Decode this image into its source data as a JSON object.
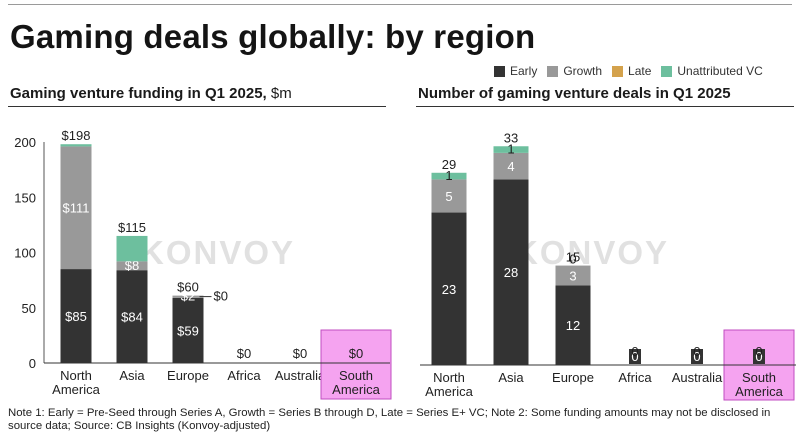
{
  "page": {
    "title": "Gaming deals globally: by region",
    "note": "Note 1: Early = Pre-Seed through Series A, Growth = Series B through D, Late = Series E+ VC; Note 2: Some funding amounts may not be disclosed in source data; Source: CB Insights (Konvoy-adjusted)",
    "watermark": "KONVOY"
  },
  "legend": [
    {
      "name": "Early",
      "color": "#333333"
    },
    {
      "name": "Growth",
      "color": "#999999"
    },
    {
      "name": "Late",
      "color": "#d4a24c"
    },
    {
      "name": "Unattributed VC",
      "color": "#6dbf9e"
    }
  ],
  "highlight_color": "#f5a3f0",
  "chart_data": [
    {
      "type": "bar",
      "stacked": true,
      "title": "Gaming venture funding in Q1 2025,",
      "unit": "$m",
      "categories": [
        "North America",
        "Asia",
        "Europe",
        "Africa",
        "Australia",
        "South America"
      ],
      "category_lines": [
        [
          "North",
          "America"
        ],
        [
          "Asia"
        ],
        [
          "Europe"
        ],
        [
          "Africa"
        ],
        [
          "Australia"
        ],
        [
          "South",
          "America"
        ]
      ],
      "highlight": "South America",
      "ylim": [
        0,
        200
      ],
      "yticks": [
        0,
        50,
        100,
        150,
        200
      ],
      "grid": false,
      "series": [
        {
          "name": "Early",
          "values": [
            85,
            84,
            59,
            0,
            0,
            0
          ],
          "labels": [
            "$85",
            "$84",
            "$59",
            "",
            "",
            ""
          ]
        },
        {
          "name": "Growth",
          "values": [
            111,
            8,
            2,
            0,
            0,
            0
          ],
          "labels": [
            "$111",
            "$8",
            "$2",
            "",
            "",
            ""
          ]
        },
        {
          "name": "Late",
          "values": [
            0,
            0,
            0,
            0,
            0,
            0
          ],
          "labels": [
            "",
            "",
            "",
            "",
            "",
            ""
          ]
        },
        {
          "name": "Unattributed VC",
          "values": [
            2,
            23,
            0,
            0,
            0,
            0
          ],
          "labels": [
            "",
            "",
            "",
            "",
            "",
            ""
          ]
        }
      ],
      "totals": [
        "$198",
        "$115",
        "$60",
        "$0",
        "$0",
        "$0"
      ],
      "annotations": [
        {
          "category": "Europe",
          "text": "$0"
        }
      ]
    },
    {
      "type": "bar",
      "stacked": true,
      "title": "Number of gaming venture deals in Q1 2025",
      "categories": [
        "North America",
        "Asia",
        "Europe",
        "Africa",
        "Australia",
        "South America"
      ],
      "category_lines": [
        [
          "North",
          "America"
        ],
        [
          "Asia"
        ],
        [
          "Europe"
        ],
        [
          "Africa"
        ],
        [
          "Australia"
        ],
        [
          "South",
          "America"
        ]
      ],
      "highlight": "South America",
      "ylim": [
        0,
        35
      ],
      "yticks": [],
      "grid": false,
      "series": [
        {
          "name": "Early",
          "values": [
            23,
            28,
            12,
            0,
            0,
            0
          ],
          "labels": [
            "23",
            "28",
            "12",
            "0",
            "0",
            "0"
          ]
        },
        {
          "name": "Growth",
          "values": [
            5,
            4,
            3,
            0,
            0,
            0
          ],
          "labels": [
            "5",
            "4",
            "3",
            "",
            "",
            ""
          ]
        },
        {
          "name": "Late",
          "values": [
            0,
            0,
            0,
            0,
            0,
            0
          ],
          "labels": [
            "",
            "",
            "",
            "",
            "",
            ""
          ]
        },
        {
          "name": "Unattributed VC",
          "values": [
            1,
            1,
            0,
            0,
            0,
            0
          ],
          "labels": [
            "1",
            "1",
            "0",
            "",
            "",
            ""
          ]
        }
      ],
      "totals": [
        "29",
        "33",
        "15",
        "0",
        "0",
        "0"
      ]
    }
  ]
}
